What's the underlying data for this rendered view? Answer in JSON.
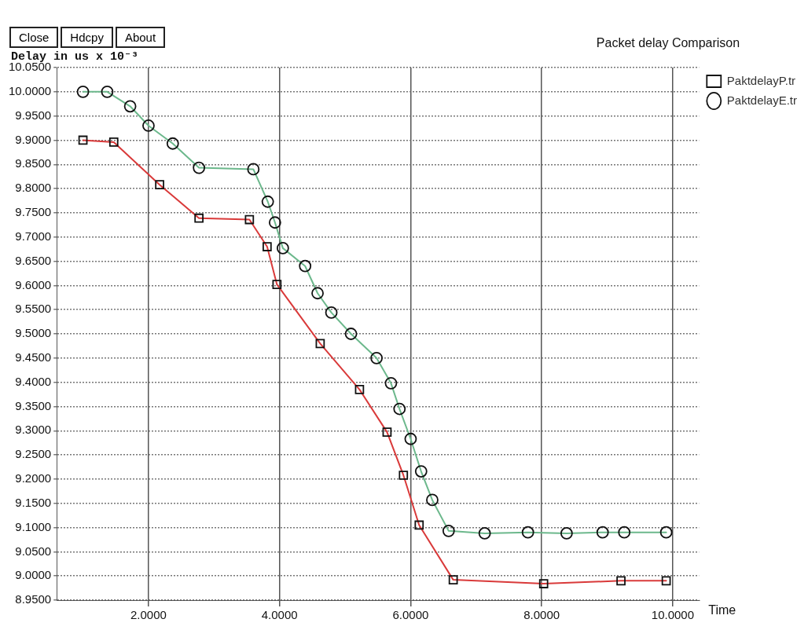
{
  "chart_data": {
    "type": "line",
    "title": "Packet delay Comparison",
    "xlabel": "Time",
    "ylabel": "Delay in us x 10⁻³",
    "annotations": [
      "Close",
      "Hdcpy",
      "About"
    ],
    "xlim": [
      0.6,
      10.4
    ],
    "xticks": [
      {
        "value": 2,
        "label": "2.0000"
      },
      {
        "value": 4,
        "label": "4.0000"
      },
      {
        "value": 6,
        "label": "6.0000"
      },
      {
        "value": 8,
        "label": "8.0000"
      },
      {
        "value": 10,
        "label": "10.0000"
      }
    ],
    "ylim": [
      8.95,
      10.05
    ],
    "yticks": [
      {
        "value": 8.95,
        "label": "8.9500"
      },
      {
        "value": 9.0,
        "label": "9.0000"
      },
      {
        "value": 9.05,
        "label": "9.0500"
      },
      {
        "value": 9.1,
        "label": "9.1000"
      },
      {
        "value": 9.15,
        "label": "9.1500"
      },
      {
        "value": 9.2,
        "label": "9.2000"
      },
      {
        "value": 9.25,
        "label": "9.2500"
      },
      {
        "value": 9.3,
        "label": "9.3000"
      },
      {
        "value": 9.35,
        "label": "9.3500"
      },
      {
        "value": 9.4,
        "label": "9.4000"
      },
      {
        "value": 9.45,
        "label": "9.4500"
      },
      {
        "value": 9.5,
        "label": "9.5000"
      },
      {
        "value": 9.55,
        "label": "9.5500"
      },
      {
        "value": 9.6,
        "label": "9.6000"
      },
      {
        "value": 9.65,
        "label": "9.6500"
      },
      {
        "value": 9.7,
        "label": "9.7000"
      },
      {
        "value": 9.75,
        "label": "9.7500"
      },
      {
        "value": 9.8,
        "label": "9.8000"
      },
      {
        "value": 9.85,
        "label": "9.8500"
      },
      {
        "value": 9.9,
        "label": "9.9000"
      },
      {
        "value": 9.95,
        "label": "9.9500"
      },
      {
        "value": 10.0,
        "label": "10.0000"
      },
      {
        "value": 10.05,
        "label": "10.0500"
      }
    ],
    "grid": true,
    "legend": "top right",
    "line_style": "solid",
    "series": [
      {
        "name": "PaktdelayP.tr",
        "color": "#d93a3a",
        "marker": "square",
        "x": [
          1.0,
          1.47,
          2.17,
          2.77,
          3.54,
          3.81,
          3.96,
          4.62,
          5.22,
          5.64,
          5.89,
          6.13,
          6.65,
          8.03,
          9.21,
          9.9
        ],
        "values": [
          9.9,
          9.896,
          9.808,
          9.739,
          9.736,
          9.68,
          9.602,
          9.48,
          9.385,
          9.297,
          9.208,
          9.105,
          8.992,
          8.984,
          8.99,
          8.99
        ]
      },
      {
        "name": "PaktdelayE.tr",
        "color": "#6cb88c",
        "marker": "circle",
        "x": [
          1.0,
          1.37,
          1.72,
          2.0,
          2.37,
          2.77,
          3.6,
          3.82,
          3.93,
          4.05,
          4.39,
          4.58,
          4.79,
          5.09,
          5.48,
          5.7,
          5.83,
          6.0,
          6.16,
          6.33,
          6.58,
          7.13,
          7.79,
          8.38,
          8.93,
          9.26,
          9.9
        ],
        "values": [
          10.0,
          10.0,
          9.97,
          9.93,
          9.893,
          9.843,
          9.84,
          9.773,
          9.73,
          9.677,
          9.64,
          9.584,
          9.544,
          9.5,
          9.45,
          9.398,
          9.345,
          9.283,
          9.216,
          9.157,
          9.093,
          9.088,
          9.09,
          9.088,
          9.09,
          9.09,
          9.09
        ]
      }
    ]
  }
}
